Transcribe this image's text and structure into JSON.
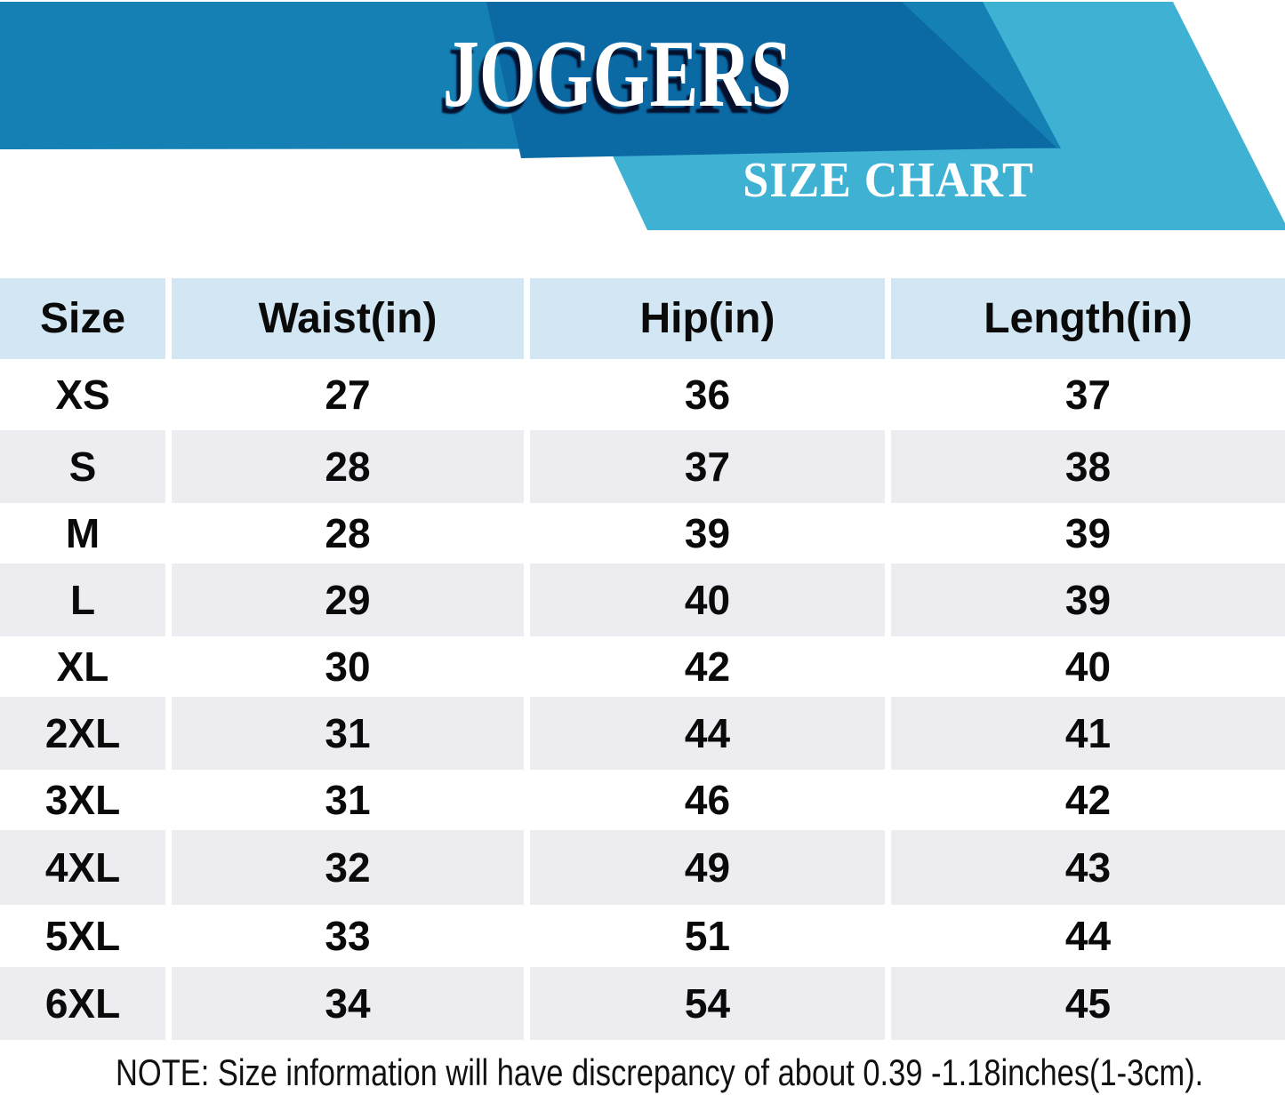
{
  "banner": {
    "title": "JOGGERS",
    "subtitle": "SIZE CHART",
    "colors": {
      "banner_blue": "#1480b4",
      "banner_dark_blue": "#0b69a4",
      "banner_light_blue": "#3fb2d4",
      "table_header_blue": "#d2e7f3",
      "row_stripe_gray": "#ececf1"
    }
  },
  "table": {
    "columns": [
      "Size",
      "Waist(in)",
      "Hip(in)",
      "Length(in)"
    ],
    "rows": [
      {
        "size": "XS",
        "waist": "27",
        "hip": "36",
        "length": "37"
      },
      {
        "size": "S",
        "waist": "28",
        "hip": "37",
        "length": "38"
      },
      {
        "size": "M",
        "waist": "28",
        "hip": "39",
        "length": "39"
      },
      {
        "size": "L",
        "waist": "29",
        "hip": "40",
        "length": "39"
      },
      {
        "size": "XL",
        "waist": "30",
        "hip": "42",
        "length": "40"
      },
      {
        "size": "2XL",
        "waist": "31",
        "hip": "44",
        "length": "41"
      },
      {
        "size": "3XL",
        "waist": "31",
        "hip": "46",
        "length": "42"
      },
      {
        "size": "4XL",
        "waist": "32",
        "hip": "49",
        "length": "43"
      },
      {
        "size": "5XL",
        "waist": "33",
        "hip": "51",
        "length": "44"
      },
      {
        "size": "6XL",
        "waist": "34",
        "hip": "54",
        "length": "45"
      }
    ]
  },
  "note": "NOTE: Size information will have discrepancy of about 0.39 -1.18inches(1-3cm)."
}
